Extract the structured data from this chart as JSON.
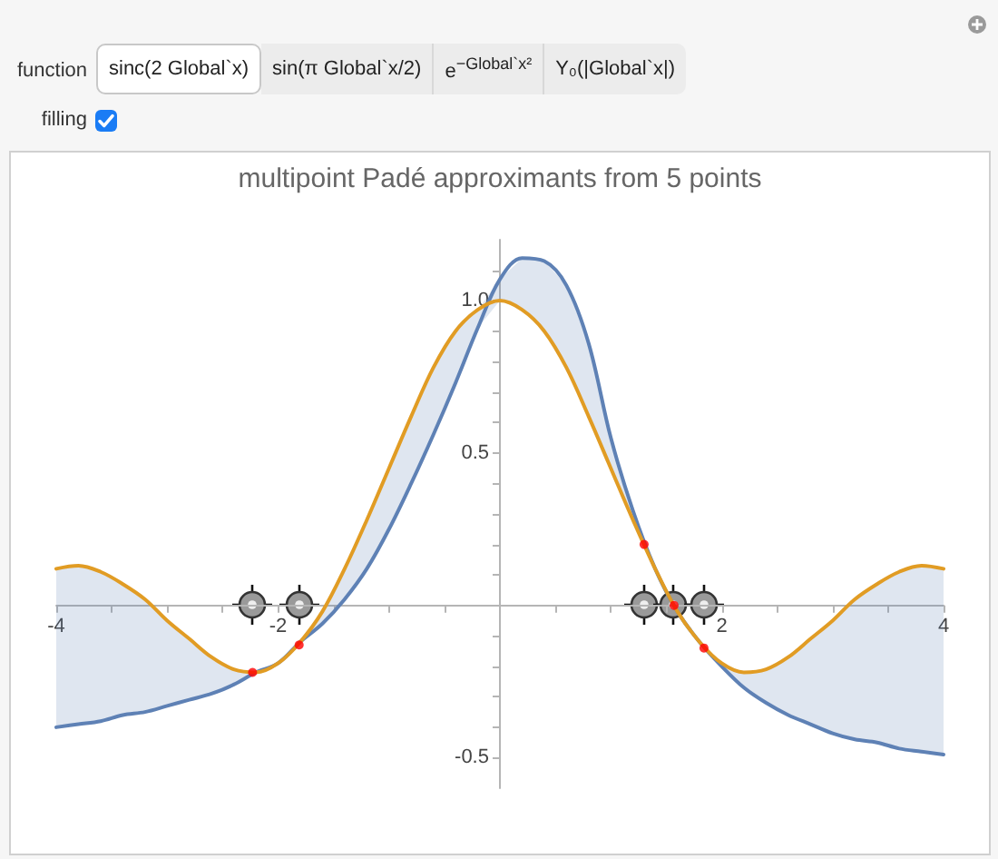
{
  "chart_data": {
    "type": "line",
    "title": "multipoint Padé approximants from 5 points",
    "annotations": [
      "function",
      "sinc(2 Global`x)",
      "sin(π Global`x/2)",
      "e$^{−Global`x²}$",
      "Y₀(|Global`x|)",
      "filling"
    ],
    "xlim": [
      -4,
      4
    ],
    "ylim": [
      -0.6,
      1.2
    ],
    "xticks": [
      -4,
      {
        "value": -3.5,
        "label": null
      },
      {
        "value": -3,
        "label": null
      },
      {
        "value": -2.5,
        "label": null
      },
      -2,
      {
        "value": -1.5,
        "label": null
      },
      {
        "value": -1,
        "label": null
      },
      {
        "value": -0.5,
        "label": null
      },
      {
        "value": 0.5,
        "label": null
      },
      {
        "value": 1,
        "label": null
      },
      {
        "value": 1.5,
        "label": null
      },
      2,
      {
        "value": 2.5,
        "label": null
      },
      {
        "value": 3,
        "label": null
      },
      {
        "value": 3.5,
        "label": null
      },
      4
    ],
    "yticks": [
      -0.5,
      {
        "value": -0.4,
        "label": null
      },
      {
        "value": -0.3,
        "label": null
      },
      {
        "value": -0.2,
        "label": null
      },
      {
        "value": -0.1,
        "label": null
      },
      {
        "value": 0.1,
        "label": null
      },
      {
        "value": 0.2,
        "label": null
      },
      {
        "value": 0.3,
        "label": null
      },
      {
        "value": 0.4,
        "label": null
      },
      0.5,
      {
        "value": 0.6,
        "label": null
      },
      {
        "value": 0.7,
        "label": null
      },
      {
        "value": 0.8,
        "label": null
      },
      {
        "value": 0.9,
        "label": null
      },
      {
        "value": 1,
        "label": "1.0"
      },
      {
        "value": 1.1,
        "label": null
      }
    ],
    "marker": "none",
    "line_style": "solid",
    "x": [
      -4,
      -3.8,
      -3.6,
      -3.4,
      -3.2,
      -3,
      -2.8,
      -2.6,
      -2.4,
      -2.2,
      -2,
      -1.8,
      -1.6,
      -1.4,
      -1.2,
      -1,
      -0.8,
      -0.6,
      -0.4,
      -0.2,
      0,
      0.2,
      0.4,
      0.6,
      0.8,
      1,
      1.2,
      1.4,
      1.6,
      1.8,
      2,
      2.2,
      2.4,
      2.6,
      2.8,
      3,
      3.2,
      3.4,
      3.6,
      3.8,
      4
    ],
    "series": [
      {
        "color": "#5e81b5",
        "values": [
          -0.4,
          -0.39,
          -0.38,
          -0.36,
          -0.35,
          -0.33,
          -0.31,
          -0.29,
          -0.26,
          -0.22,
          -0.19,
          -0.12,
          -0.06,
          0.02,
          0.12,
          0.25,
          0.4,
          0.56,
          0.73,
          0.91,
          1.07,
          1.14,
          1.13,
          1.05,
          0.86,
          0.55,
          0.31,
          0.12,
          -0.02,
          -0.12,
          -0.2,
          -0.27,
          -0.32,
          -0.36,
          -0.39,
          -0.42,
          -0.44,
          -0.45,
          -0.47,
          -0.48,
          -0.49
        ],
        "lower": [
          -0.4,
          -0.39,
          -0.38,
          -0.36,
          -0.35,
          -0.33,
          -0.31,
          -0.29,
          -0.26,
          -0.22,
          -0.19,
          -0.12,
          -0.06,
          0.02,
          0.12,
          0.25,
          0.4,
          0.56,
          0.73,
          0.91,
          1,
          0.97,
          0.9,
          0.78,
          0.62,
          0.45,
          0.28,
          0.12,
          -0.02,
          -0.12,
          -0.2,
          -0.27,
          -0.32,
          -0.36,
          -0.39,
          -0.42,
          -0.44,
          -0.45,
          -0.47,
          -0.48,
          -0.49
        ],
        "upper": [
          0.12,
          0.13,
          0.11,
          0.07,
          0.02,
          -0.05,
          -0.11,
          -0.17,
          -0.21,
          -0.22,
          -0.19,
          -0.12,
          -0.02,
          0.12,
          0.28,
          0.45,
          0.62,
          0.78,
          0.9,
          0.97,
          1.07,
          1.14,
          1.13,
          1.05,
          0.86,
          0.55,
          0.31,
          0.12,
          -0.02,
          -0.12,
          -0.19,
          -0.22,
          -0.21,
          -0.17,
          -0.11,
          -0.05,
          0.02,
          0.07,
          0.11,
          0.13,
          0.12
        ]
      },
      {
        "color": "#e19c24",
        "values": [
          0.12,
          0.13,
          0.11,
          0.07,
          0.02,
          -0.05,
          -0.11,
          -0.17,
          -0.21,
          -0.22,
          -0.19,
          -0.12,
          -0.02,
          0.12,
          0.28,
          0.45,
          0.62,
          0.78,
          0.9,
          0.97,
          1,
          0.97,
          0.9,
          0.78,
          0.62,
          0.45,
          0.28,
          0.12,
          -0.02,
          -0.12,
          -0.19,
          -0.22,
          -0.21,
          -0.17,
          -0.11,
          -0.05,
          0.02,
          0.07,
          0.11,
          0.13,
          0.12
        ]
      },
      {
        "type": "scatter",
        "marker": "circle",
        "color": "#ff0000",
        "x": [
          -2.23,
          -1.81,
          1.3,
          1.57,
          1.84
        ],
        "values": [
          -0.22,
          -0.13,
          0.2,
          0,
          -0.14
        ]
      }
    ]
  }
}
